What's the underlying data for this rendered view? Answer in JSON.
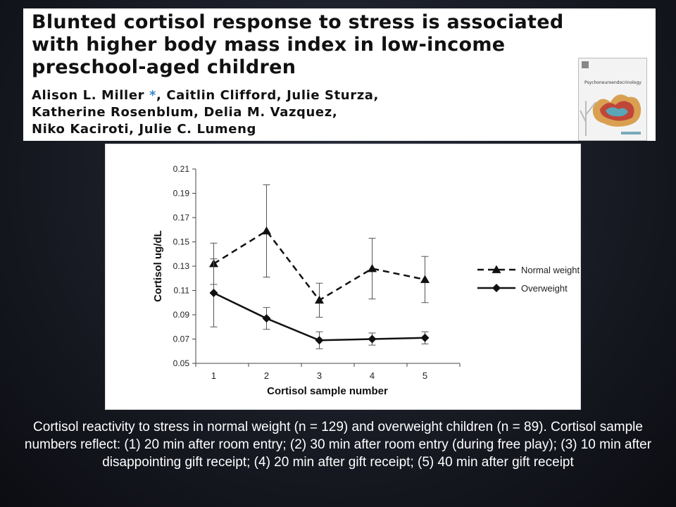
{
  "paper": {
    "title": "Blunted cortisol response to stress is associated with higher body mass index in low-income preschool-aged children",
    "authors_line1": "Alison L. Miller",
    "asterisk": "*",
    "authors_line1_rest": ", Caitlin Clifford, Julie Sturza,",
    "authors_line2": "Katherine Rosenblum, Delia M. Vazquez,",
    "authors_line3": "Niko Kaciroti, Julie C. Lumeng",
    "journal_cover_title": "Psychoneuroendocrinology"
  },
  "chart_data": {
    "type": "line",
    "categories": [
      "1",
      "2",
      "3",
      "4",
      "5"
    ],
    "xlabel": "Cortisol sample number",
    "ylabel": "Cortisol ug/dL",
    "ylim": [
      0.05,
      0.21
    ],
    "yticks": [
      "0.21",
      "0.19",
      "0.17",
      "0.15",
      "0.13",
      "0.11",
      "0.09",
      "0.07",
      "0.05"
    ],
    "grid": false,
    "legend_position": "right",
    "series": [
      {
        "name": "Normal weight",
        "marker": "triangle",
        "line_style": "dashed",
        "values": [
          0.132,
          0.159,
          0.102,
          0.128,
          0.119
        ],
        "error": [
          0.017,
          0.038,
          0.014,
          0.025,
          0.019
        ]
      },
      {
        "name": "Overweight",
        "marker": "diamond",
        "line_style": "solid",
        "values": [
          0.108,
          0.087,
          0.069,
          0.07,
          0.071
        ],
        "error": [
          0.028,
          0.009,
          0.007,
          0.005,
          0.005
        ]
      }
    ]
  },
  "caption": "Cortisol reactivity to stress in normal weight (n = 129) and overweight children (n = 89). Cortisol sample numbers reflect: (1) 20 min after room entry; (2) 30 min after room entry (during free play); (3) 10 min after disappointing gift receipt; (4) 20 min after gift receipt; (5) 40 min after gift receipt"
}
